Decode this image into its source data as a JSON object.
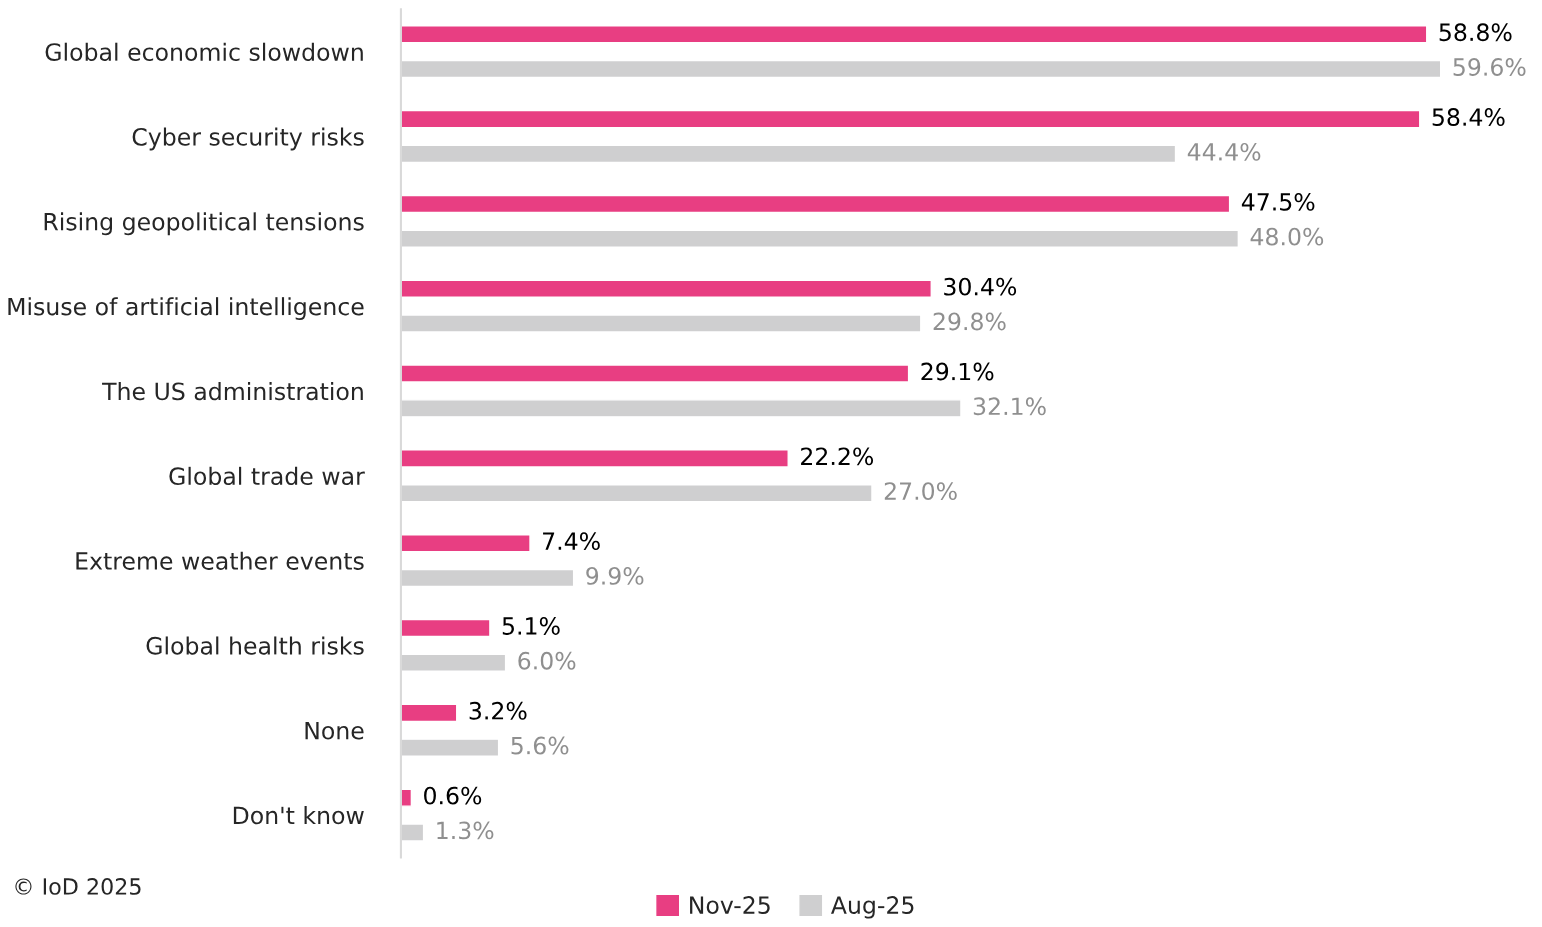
{
  "chart_data": {
    "type": "bar",
    "orientation": "horizontal",
    "categories": [
      "Global economic slowdown",
      "Cyber security risks",
      "Rising geopolitical tensions",
      "Misuse of artificial intelligence",
      "The US administration",
      "Global trade war",
      "Extreme weather events",
      "Global health risks",
      "None",
      "Don't know"
    ],
    "series": [
      {
        "name": "Nov-25",
        "color": "#e83e82",
        "values": [
          58.8,
          58.4,
          47.5,
          30.4,
          29.1,
          22.2,
          7.4,
          5.1,
          3.2,
          0.6
        ],
        "value_labels": [
          "58.8%",
          "58.4%",
          "47.5%",
          "30.4%",
          "29.1%",
          "22.2%",
          "7.4%",
          "5.1%",
          "3.2%",
          "0.6%"
        ]
      },
      {
        "name": "Aug-25",
        "color": "#cfcfd0",
        "values": [
          59.6,
          44.4,
          48.0,
          29.8,
          32.1,
          27.0,
          9.9,
          6.0,
          5.6,
          1.3
        ],
        "value_labels": [
          "59.6%",
          "44.4%",
          "48.0%",
          "29.8%",
          "32.1%",
          "27.0%",
          "9.9%",
          "6.0%",
          "5.6%",
          "1.3%"
        ]
      }
    ],
    "legend": "bottom",
    "grid": false,
    "tick_labels": "y",
    "annotations": [
      "© IoD 2025"
    ]
  }
}
